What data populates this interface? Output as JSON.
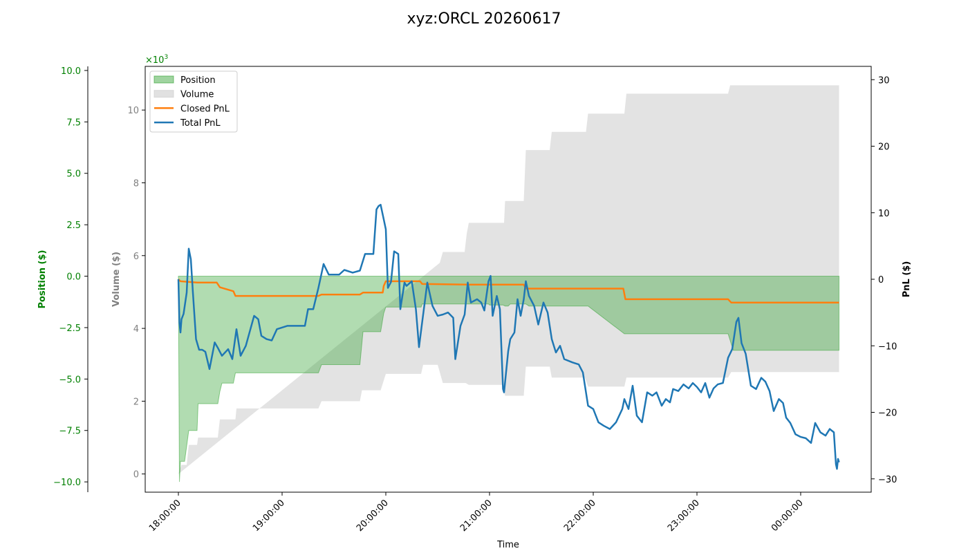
{
  "chart_data": {
    "type": "area",
    "title": "xyz:ORCL 20260617",
    "xlabel": "Time",
    "x_ticks": [
      "18:00:00",
      "19:00:00",
      "20:00:00",
      "21:00:00",
      "22:00:00",
      "23:00:00",
      "00:00:00"
    ],
    "x_range_hours": [
      17.68,
      24.68
    ],
    "axes": {
      "position": {
        "label": "Position ($)",
        "color": "#008000",
        "range": [
          -10.5,
          10.2
        ],
        "ticks": [
          -10.0,
          -7.5,
          -5.0,
          -2.5,
          0.0,
          2.5,
          5.0,
          7.5,
          10.0
        ],
        "tick_labels": [
          "−10.0",
          "−7.5",
          "−5.0",
          "−2.5",
          "0.0",
          "2.5",
          "5.0",
          "7.5",
          "10.0"
        ]
      },
      "volume": {
        "label": "Volume ($)",
        "color": "#808080",
        "range": [
          -0.5,
          11.2
        ],
        "ticks": [
          0,
          2,
          4,
          6,
          8,
          10
        ],
        "tick_labels": [
          "0",
          "2",
          "4",
          "6",
          "8",
          "10"
        ],
        "multiplier_base": "×10",
        "multiplier_exp": "3"
      },
      "pnl": {
        "label": "PnL ($)",
        "color": "#000000",
        "range": [
          -32,
          32
        ],
        "ticks": [
          -30,
          -20,
          -10,
          0,
          10,
          20,
          30
        ],
        "tick_labels": [
          "−30",
          "−20",
          "−10",
          "0",
          "10",
          "20",
          "30"
        ]
      }
    },
    "legend": {
      "placement": "top-left",
      "items": [
        {
          "label": "Position",
          "kind": "patch",
          "color": "#2ca02c"
        },
        {
          "label": "Volume",
          "kind": "patch",
          "color": "#c8c8c8"
        },
        {
          "label": "Closed PnL",
          "kind": "line",
          "color": "#ff7f0e"
        },
        {
          "label": "Total PnL",
          "kind": "line",
          "color": "#1f77b4"
        }
      ]
    },
    "series": [
      {
        "name": "Position",
        "axis": "position",
        "color": "#2ca02c",
        "points": [
          [
            18.0,
            0
          ],
          [
            18.01,
            -10.0
          ],
          [
            18.02,
            -9.0
          ],
          [
            18.06,
            -9.0
          ],
          [
            18.1,
            -7.5
          ],
          [
            18.18,
            -7.5
          ],
          [
            18.19,
            -6.2
          ],
          [
            18.38,
            -6.2
          ],
          [
            18.4,
            -5.6
          ],
          [
            18.42,
            -5.2
          ],
          [
            18.53,
            -5.2
          ],
          [
            18.55,
            -4.7
          ],
          [
            19.35,
            -4.7
          ],
          [
            19.38,
            -4.3
          ],
          [
            19.75,
            -4.3
          ],
          [
            19.78,
            -2.7
          ],
          [
            19.95,
            -2.7
          ],
          [
            19.98,
            -1.8
          ],
          [
            20.0,
            -1.5
          ],
          [
            20.34,
            -1.5
          ],
          [
            20.35,
            -1.35
          ],
          [
            20.99,
            -1.35
          ],
          [
            21.0,
            -1.4
          ],
          [
            21.13,
            -1.4
          ],
          [
            21.15,
            -1.45
          ],
          [
            21.18,
            -1.45
          ],
          [
            21.2,
            -1.35
          ],
          [
            21.35,
            -1.35
          ],
          [
            21.38,
            -1.45
          ],
          [
            21.95,
            -1.45
          ],
          [
            22.3,
            -2.8
          ],
          [
            23.3,
            -2.8
          ],
          [
            23.35,
            -3.6
          ],
          [
            24.37,
            -3.6
          ]
        ]
      },
      {
        "name": "Volume",
        "axis": "volume",
        "color": "#c8c8c8",
        "points": [
          [
            18.0,
            0
          ],
          [
            18.03,
            0.25
          ],
          [
            18.08,
            0.25
          ],
          [
            18.1,
            0.8
          ],
          [
            18.18,
            0.8
          ],
          [
            18.19,
            1.0
          ],
          [
            18.38,
            1.0
          ],
          [
            18.4,
            1.5
          ],
          [
            18.55,
            1.5
          ],
          [
            18.56,
            1.8
          ],
          [
            19.35,
            1.8
          ],
          [
            19.38,
            2.0
          ],
          [
            19.75,
            2.0
          ],
          [
            19.77,
            2.3
          ],
          [
            19.95,
            2.3
          ],
          [
            20.0,
            2.75
          ],
          [
            20.34,
            2.75
          ],
          [
            20.36,
            3.0
          ],
          [
            20.5,
            3.0
          ],
          [
            20.55,
            2.5
          ],
          [
            20.77,
            2.5
          ],
          [
            20.8,
            2.45
          ],
          [
            21.13,
            2.45
          ],
          [
            21.15,
            2.15
          ],
          [
            21.33,
            2.15
          ],
          [
            21.35,
            2.95
          ],
          [
            21.58,
            2.95
          ],
          [
            21.6,
            2.65
          ],
          [
            21.92,
            2.65
          ],
          [
            21.95,
            2.4
          ],
          [
            22.3,
            2.4
          ],
          [
            22.32,
            2.65
          ],
          [
            23.3,
            2.65
          ],
          [
            23.33,
            2.8
          ],
          [
            24.37,
            2.8
          ]
        ],
        "upper_points": [
          [
            18.0,
            0
          ],
          [
            20.52,
            5.8
          ],
          [
            20.55,
            6.1
          ],
          [
            20.76,
            6.1
          ],
          [
            20.78,
            6.6
          ],
          [
            20.8,
            6.9
          ],
          [
            21.14,
            6.9
          ],
          [
            21.15,
            7.5
          ],
          [
            21.33,
            7.5
          ],
          [
            21.35,
            8.9
          ],
          [
            21.58,
            8.9
          ],
          [
            21.6,
            9.4
          ],
          [
            21.93,
            9.4
          ],
          [
            21.95,
            9.9
          ],
          [
            22.3,
            9.9
          ],
          [
            22.32,
            10.45
          ],
          [
            23.3,
            10.45
          ],
          [
            23.32,
            10.68
          ],
          [
            24.37,
            10.68
          ]
        ]
      },
      {
        "name": "Closed PnL",
        "axis": "pnl",
        "color": "#ff7f0e",
        "points": [
          [
            18.0,
            0
          ],
          [
            18.02,
            -0.3
          ],
          [
            18.18,
            -0.5
          ],
          [
            18.37,
            -0.5
          ],
          [
            18.4,
            -1.2
          ],
          [
            18.53,
            -1.8
          ],
          [
            18.55,
            -2.5
          ],
          [
            19.35,
            -2.5
          ],
          [
            19.38,
            -2.3
          ],
          [
            19.75,
            -2.3
          ],
          [
            19.78,
            -2.0
          ],
          [
            19.97,
            -2.0
          ],
          [
            19.98,
            -1.0
          ],
          [
            20.0,
            -0.3
          ],
          [
            20.33,
            -0.3
          ],
          [
            20.35,
            -0.7
          ],
          [
            20.8,
            -0.8
          ],
          [
            21.33,
            -0.8
          ],
          [
            21.35,
            -1.4
          ],
          [
            22.29,
            -1.4
          ],
          [
            22.31,
            -3.0
          ],
          [
            23.3,
            -3.0
          ],
          [
            23.33,
            -3.5
          ],
          [
            24.37,
            -3.5
          ]
        ]
      },
      {
        "name": "Total PnL",
        "axis": "pnl",
        "color": "#1f77b4",
        "points": [
          [
            18.0,
            0
          ],
          [
            18.01,
            -6.5
          ],
          [
            18.02,
            -8.0
          ],
          [
            18.03,
            -6.0
          ],
          [
            18.05,
            -5.2
          ],
          [
            18.08,
            -2.0
          ],
          [
            18.1,
            4.6
          ],
          [
            18.12,
            3.0
          ],
          [
            18.14,
            -2.0
          ],
          [
            18.17,
            -9.0
          ],
          [
            18.2,
            -10.6
          ],
          [
            18.23,
            -10.6
          ],
          [
            18.26,
            -10.9
          ],
          [
            18.3,
            -13.5
          ],
          [
            18.35,
            -9.5
          ],
          [
            18.38,
            -10.3
          ],
          [
            18.42,
            -11.5
          ],
          [
            18.48,
            -10.5
          ],
          [
            18.52,
            -12.0
          ],
          [
            18.56,
            -7.5
          ],
          [
            18.6,
            -11.5
          ],
          [
            18.65,
            -10.0
          ],
          [
            18.73,
            -5.5
          ],
          [
            18.77,
            -6.0
          ],
          [
            18.8,
            -8.5
          ],
          [
            18.85,
            -9.0
          ],
          [
            18.9,
            -9.2
          ],
          [
            18.95,
            -7.5
          ],
          [
            19.05,
            -7.0
          ],
          [
            19.15,
            -7.0
          ],
          [
            19.22,
            -7.0
          ],
          [
            19.25,
            -4.5
          ],
          [
            19.3,
            -4.5
          ],
          [
            19.35,
            -1.3
          ],
          [
            19.4,
            2.3
          ],
          [
            19.45,
            0.7
          ],
          [
            19.55,
            0.7
          ],
          [
            19.6,
            1.4
          ],
          [
            19.68,
            1.0
          ],
          [
            19.75,
            1.3
          ],
          [
            19.8,
            3.8
          ],
          [
            19.85,
            3.8
          ],
          [
            19.88,
            3.8
          ],
          [
            19.91,
            10.5
          ],
          [
            19.93,
            11.0
          ],
          [
            19.95,
            11.2
          ],
          [
            19.98,
            9.0
          ],
          [
            20.0,
            7.5
          ],
          [
            20.02,
            -1.3
          ],
          [
            20.05,
            -0.4
          ],
          [
            20.08,
            4.2
          ],
          [
            20.12,
            3.8
          ],
          [
            20.14,
            -4.5
          ],
          [
            20.18,
            -0.5
          ],
          [
            20.2,
            -1.0
          ],
          [
            20.25,
            -0.3
          ],
          [
            20.29,
            -4.5
          ],
          [
            20.32,
            -10.2
          ],
          [
            20.35,
            -6.5
          ],
          [
            20.4,
            -0.5
          ],
          [
            20.45,
            -4.0
          ],
          [
            20.5,
            -5.5
          ],
          [
            20.55,
            -5.3
          ],
          [
            20.6,
            -5.0
          ],
          [
            20.65,
            -5.8
          ],
          [
            20.67,
            -12.0
          ],
          [
            20.72,
            -7.0
          ],
          [
            20.76,
            -5.3
          ],
          [
            20.79,
            -0.5
          ],
          [
            20.82,
            -3.5
          ],
          [
            20.88,
            -3.0
          ],
          [
            20.92,
            -3.5
          ],
          [
            20.95,
            -4.7
          ],
          [
            20.99,
            -0.3
          ],
          [
            21.01,
            0.5
          ],
          [
            21.03,
            -5.5
          ],
          [
            21.07,
            -2.5
          ],
          [
            21.1,
            -4.5
          ],
          [
            21.13,
            -16.5
          ],
          [
            21.14,
            -17.0
          ],
          [
            21.18,
            -10.8
          ],
          [
            21.2,
            -9.0
          ],
          [
            21.24,
            -8.0
          ],
          [
            21.27,
            -3.0
          ],
          [
            21.3,
            -5.5
          ],
          [
            21.33,
            -3.0
          ],
          [
            21.35,
            -0.3
          ],
          [
            21.38,
            -2.5
          ],
          [
            21.43,
            -4.0
          ],
          [
            21.47,
            -6.8
          ],
          [
            21.52,
            -3.5
          ],
          [
            21.56,
            -5.0
          ],
          [
            21.6,
            -9.0
          ],
          [
            21.64,
            -11.0
          ],
          [
            21.68,
            -10.0
          ],
          [
            21.72,
            -12.0
          ],
          [
            21.8,
            -12.5
          ],
          [
            21.86,
            -12.8
          ],
          [
            21.9,
            -14.0
          ],
          [
            21.95,
            -19.0
          ],
          [
            22.0,
            -19.5
          ],
          [
            22.05,
            -21.5
          ],
          [
            22.1,
            -22.0
          ],
          [
            22.16,
            -22.5
          ],
          [
            22.22,
            -21.5
          ],
          [
            22.28,
            -19.5
          ],
          [
            22.3,
            -18.0
          ],
          [
            22.34,
            -19.5
          ],
          [
            22.38,
            -16.0
          ],
          [
            22.42,
            -20.5
          ],
          [
            22.47,
            -21.5
          ],
          [
            22.52,
            -17.0
          ],
          [
            22.57,
            -17.5
          ],
          [
            22.61,
            -17.0
          ],
          [
            22.66,
            -19.0
          ],
          [
            22.7,
            -18.0
          ],
          [
            22.74,
            -18.5
          ],
          [
            22.77,
            -16.5
          ],
          [
            22.82,
            -16.8
          ],
          [
            22.87,
            -15.8
          ],
          [
            22.92,
            -16.4
          ],
          [
            22.96,
            -15.6
          ],
          [
            23.0,
            -16.2
          ],
          [
            23.04,
            -17.0
          ],
          [
            23.08,
            -15.6
          ],
          [
            23.12,
            -17.8
          ],
          [
            23.16,
            -16.4
          ],
          [
            23.2,
            -15.8
          ],
          [
            23.25,
            -15.6
          ],
          [
            23.3,
            -11.8
          ],
          [
            23.34,
            -10.5
          ],
          [
            23.38,
            -6.4
          ],
          [
            23.4,
            -5.8
          ],
          [
            23.43,
            -9.6
          ],
          [
            23.47,
            -11.2
          ],
          [
            23.52,
            -16.0
          ],
          [
            23.57,
            -16.5
          ],
          [
            23.62,
            -14.8
          ],
          [
            23.66,
            -15.4
          ],
          [
            23.7,
            -16.8
          ],
          [
            23.74,
            -19.8
          ],
          [
            23.79,
            -18.0
          ],
          [
            23.83,
            -18.6
          ],
          [
            23.86,
            -20.8
          ],
          [
            23.9,
            -21.6
          ],
          [
            23.95,
            -23.3
          ],
          [
            24.0,
            -23.7
          ],
          [
            24.05,
            -23.9
          ],
          [
            24.1,
            -24.6
          ],
          [
            24.14,
            -21.6
          ],
          [
            24.19,
            -23.0
          ],
          [
            24.24,
            -23.5
          ],
          [
            24.28,
            -22.5
          ],
          [
            24.32,
            -23.0
          ],
          [
            24.34,
            -27.8
          ],
          [
            24.35,
            -28.5
          ],
          [
            24.36,
            -27.0
          ],
          [
            24.37,
            -27.5
          ]
        ]
      }
    ]
  }
}
